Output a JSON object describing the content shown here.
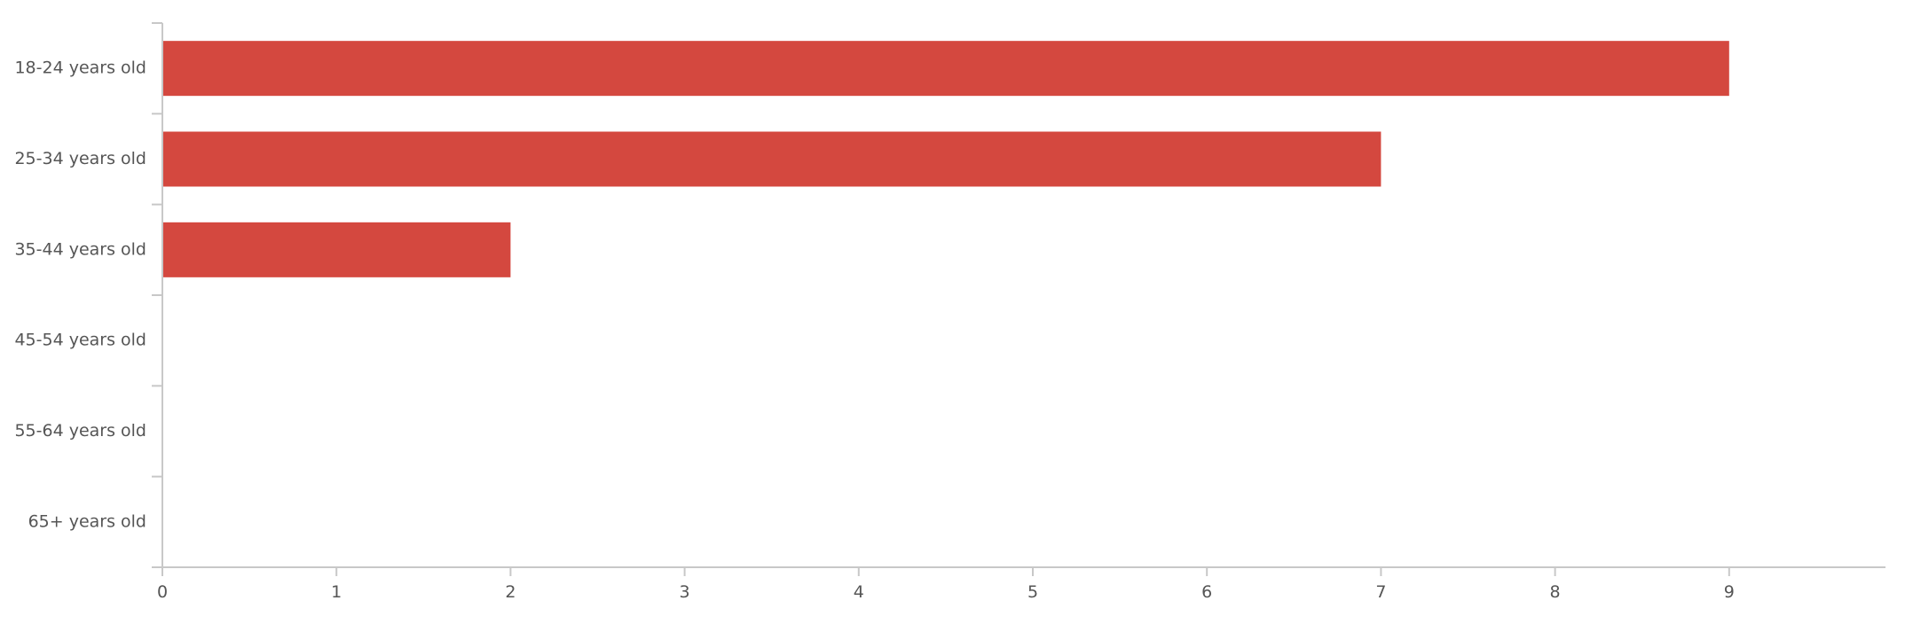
{
  "chart_data": {
    "type": "bar",
    "orientation": "horizontal",
    "categories": [
      "18-24 years old",
      "25-34 years old",
      "35-44 years old",
      "45-54 years old",
      "55-64 years old",
      "65+ years old"
    ],
    "values": [
      9,
      7,
      2,
      0,
      0,
      0
    ],
    "x_ticks": [
      0,
      1,
      2,
      3,
      4,
      5,
      6,
      7,
      8,
      9
    ],
    "xlim": [
      0,
      9.9
    ],
    "title": "",
    "xlabel": "",
    "ylabel": "",
    "grid": false,
    "legend": "none",
    "bar_color": "#d4483f"
  }
}
